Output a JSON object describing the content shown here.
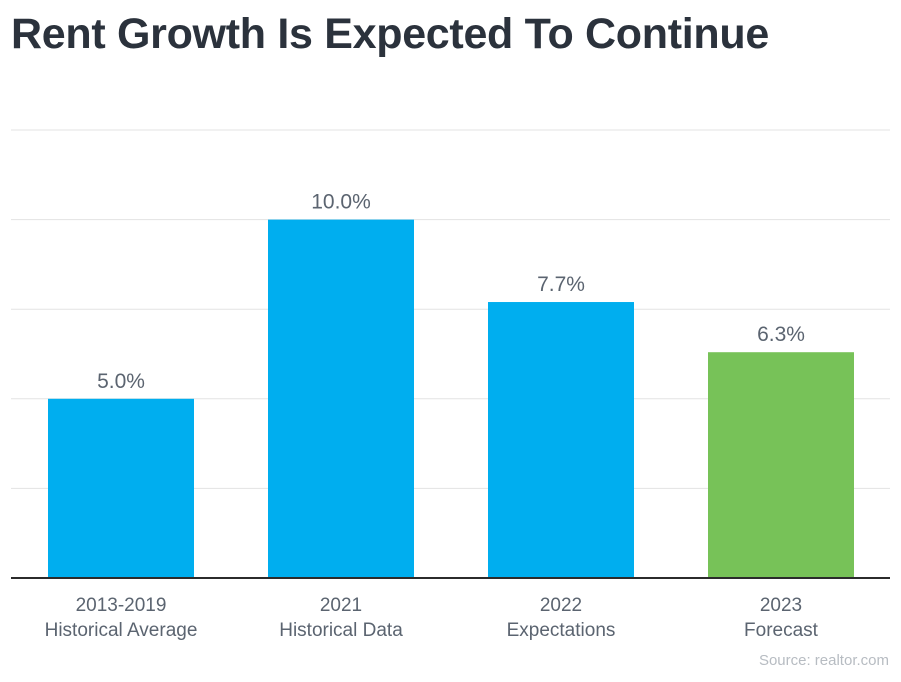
{
  "chart_data": {
    "type": "bar",
    "title": "Rent Growth Is Expected To Continue",
    "categories": [
      [
        "2013-2019",
        "Historical Average"
      ],
      [
        "2021",
        "Historical Data"
      ],
      [
        "2022",
        "Expectations"
      ],
      [
        "2023",
        "Forecast"
      ]
    ],
    "values": [
      5.0,
      10.0,
      7.7,
      6.3
    ],
    "value_labels": [
      "5.0%",
      "10.0%",
      "7.7%",
      "6.3%"
    ],
    "bar_colors": [
      "#00aeef",
      "#00aeef",
      "#00aeef",
      "#77c258"
    ],
    "ylim": [
      0,
      12.5
    ],
    "grid": true,
    "source": "Source: realtor.com"
  }
}
